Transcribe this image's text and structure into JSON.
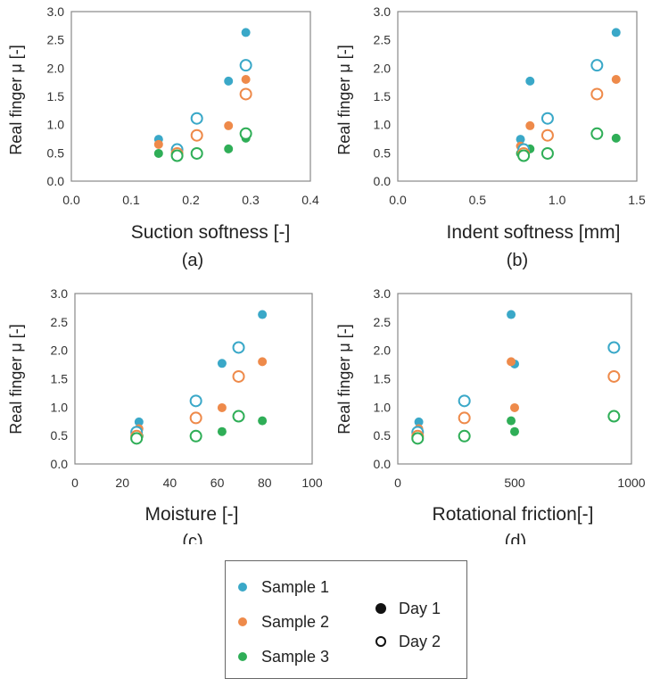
{
  "chart_data": [
    {
      "type": "scatter",
      "panel": "(a)",
      "xlabel": "Suction softness [-]",
      "ylabel": "Real finger μ [-]",
      "xlim": [
        0.0,
        0.4
      ],
      "ylim": [
        0.0,
        3.0
      ],
      "xticks": [
        "0.0",
        "0.1",
        "0.2",
        "0.3",
        "0.4"
      ],
      "yticks": [
        "0.0",
        "0.5",
        "1.0",
        "1.5",
        "2.0",
        "2.5",
        "3.0"
      ],
      "series": [
        {
          "name": "Sample 1",
          "day": "Day 1",
          "points": [
            [
              0.146,
              0.74
            ],
            [
              0.263,
              1.77
            ],
            [
              0.292,
              2.63
            ]
          ]
        },
        {
          "name": "Sample 2",
          "day": "Day 1",
          "points": [
            [
              0.146,
              0.65
            ],
            [
              0.263,
              0.98
            ],
            [
              0.292,
              1.8
            ]
          ]
        },
        {
          "name": "Sample 3",
          "day": "Day 1",
          "points": [
            [
              0.146,
              0.49
            ],
            [
              0.263,
              0.57
            ],
            [
              0.292,
              0.76
            ]
          ]
        },
        {
          "name": "Sample 1",
          "day": "Day 2",
          "points": [
            [
              0.177,
              0.56
            ],
            [
              0.21,
              1.11
            ],
            [
              0.292,
              2.05
            ]
          ]
        },
        {
          "name": "Sample 2",
          "day": "Day 2",
          "points": [
            [
              0.177,
              0.49
            ],
            [
              0.21,
              0.81
            ],
            [
              0.292,
              1.54
            ]
          ]
        },
        {
          "name": "Sample 3",
          "day": "Day 2",
          "points": [
            [
              0.177,
              0.45
            ],
            [
              0.21,
              0.49
            ],
            [
              0.292,
              0.84
            ]
          ]
        }
      ]
    },
    {
      "type": "scatter",
      "panel": "(b)",
      "xlabel": "Indent softness [mm]",
      "ylabel": "Real finger μ [-]",
      "xlim": [
        0.0,
        1.5
      ],
      "ylim": [
        0.0,
        3.0
      ],
      "xticks": [
        "0.0",
        "0.5",
        "1.0",
        "1.5"
      ],
      "yticks": [
        "0.0",
        "0.5",
        "1.0",
        "1.5",
        "2.0",
        "2.5",
        "3.0"
      ],
      "series": [
        {
          "name": "Sample 1",
          "day": "Day 1",
          "points": [
            [
              0.77,
              0.74
            ],
            [
              0.83,
              1.77
            ],
            [
              1.37,
              2.63
            ]
          ]
        },
        {
          "name": "Sample 2",
          "day": "Day 1",
          "points": [
            [
              0.77,
              0.62
            ],
            [
              0.83,
              0.98
            ],
            [
              1.37,
              1.8
            ]
          ]
        },
        {
          "name": "Sample 3",
          "day": "Day 1",
          "points": [
            [
              0.77,
              0.49
            ],
            [
              0.83,
              0.57
            ],
            [
              1.37,
              0.76
            ]
          ]
        },
        {
          "name": "Sample 1",
          "day": "Day 2",
          "points": [
            [
              0.79,
              0.56
            ],
            [
              0.94,
              1.11
            ],
            [
              1.25,
              2.05
            ]
          ]
        },
        {
          "name": "Sample 2",
          "day": "Day 2",
          "points": [
            [
              0.79,
              0.49
            ],
            [
              0.94,
              0.81
            ],
            [
              1.25,
              1.54
            ]
          ]
        },
        {
          "name": "Sample 3",
          "day": "Day 2",
          "points": [
            [
              0.79,
              0.45
            ],
            [
              0.94,
              0.49
            ],
            [
              1.25,
              0.84
            ]
          ]
        }
      ]
    },
    {
      "type": "scatter",
      "panel": "(c)",
      "xlabel": "Moisture [-]",
      "ylabel": "Real finger μ [-]",
      "xlim": [
        0,
        100
      ],
      "ylim": [
        0.0,
        3.0
      ],
      "xticks": [
        "0",
        "20",
        "40",
        "60",
        "80",
        "100"
      ],
      "yticks": [
        "0.0",
        "0.5",
        "1.0",
        "1.5",
        "2.0",
        "2.5",
        "3.0"
      ],
      "series": [
        {
          "name": "Sample 1",
          "day": "Day 1",
          "points": [
            [
              27,
              0.74
            ],
            [
              62,
              1.77
            ],
            [
              79,
              2.63
            ]
          ]
        },
        {
          "name": "Sample 2",
          "day": "Day 1",
          "points": [
            [
              27,
              0.62
            ],
            [
              62,
              0.99
            ],
            [
              79,
              1.8
            ]
          ]
        },
        {
          "name": "Sample 3",
          "day": "Day 1",
          "points": [
            [
              27,
              0.49
            ],
            [
              62,
              0.57
            ],
            [
              79,
              0.76
            ]
          ]
        },
        {
          "name": "Sample 1",
          "day": "Day 2",
          "points": [
            [
              26,
              0.56
            ],
            [
              51,
              1.11
            ],
            [
              69,
              2.05
            ]
          ]
        },
        {
          "name": "Sample 2",
          "day": "Day 2",
          "points": [
            [
              26,
              0.49
            ],
            [
              51,
              0.81
            ],
            [
              69,
              1.54
            ]
          ]
        },
        {
          "name": "Sample 3",
          "day": "Day 2",
          "points": [
            [
              26,
              0.45
            ],
            [
              51,
              0.49
            ],
            [
              69,
              0.84
            ]
          ]
        }
      ]
    },
    {
      "type": "scatter",
      "panel": "(d)",
      "xlabel": "Rotational friction[-]",
      "ylabel": "Real finger μ [-]",
      "xlim": [
        0,
        1000
      ],
      "ylim": [
        0.0,
        3.0
      ],
      "xticks": [
        "0",
        "500",
        "1000"
      ],
      "yticks": [
        "0.0",
        "0.5",
        "1.0",
        "1.5",
        "2.0",
        "2.5",
        "3.0"
      ],
      "series": [
        {
          "name": "Sample 1",
          "day": "Day 1",
          "points": [
            [
              90,
              0.74
            ],
            [
              485,
              2.63
            ],
            [
              500,
              1.76
            ]
          ]
        },
        {
          "name": "Sample 2",
          "day": "Day 1",
          "points": [
            [
              90,
              0.62
            ],
            [
              485,
              1.8
            ],
            [
              500,
              0.99
            ]
          ]
        },
        {
          "name": "Sample 3",
          "day": "Day 1",
          "points": [
            [
              90,
              0.49
            ],
            [
              485,
              0.76
            ],
            [
              500,
              0.57
            ]
          ]
        },
        {
          "name": "Sample 1",
          "day": "Day 2",
          "points": [
            [
              85,
              0.56
            ],
            [
              285,
              1.11
            ],
            [
              925,
              2.05
            ]
          ]
        },
        {
          "name": "Sample 2",
          "day": "Day 2",
          "points": [
            [
              85,
              0.49
            ],
            [
              285,
              0.81
            ],
            [
              925,
              1.54
            ]
          ]
        },
        {
          "name": "Sample 3",
          "day": "Day 2",
          "points": [
            [
              85,
              0.45
            ],
            [
              285,
              0.49
            ],
            [
              925,
              0.84
            ]
          ]
        }
      ]
    }
  ],
  "colors": {
    "Sample 1": "#3aa8c8",
    "Sample 2": "#ee8a4a",
    "Sample 3": "#2fae57",
    "axis": "#888888",
    "legend_black": "#111111"
  },
  "legend": {
    "samples": [
      "Sample 1",
      "Sample 2",
      "Sample 3"
    ],
    "days": [
      "Day 1",
      "Day 2"
    ],
    "day_markers": {
      "Day 1": "filled-circle",
      "Day 2": "open-circle"
    }
  }
}
